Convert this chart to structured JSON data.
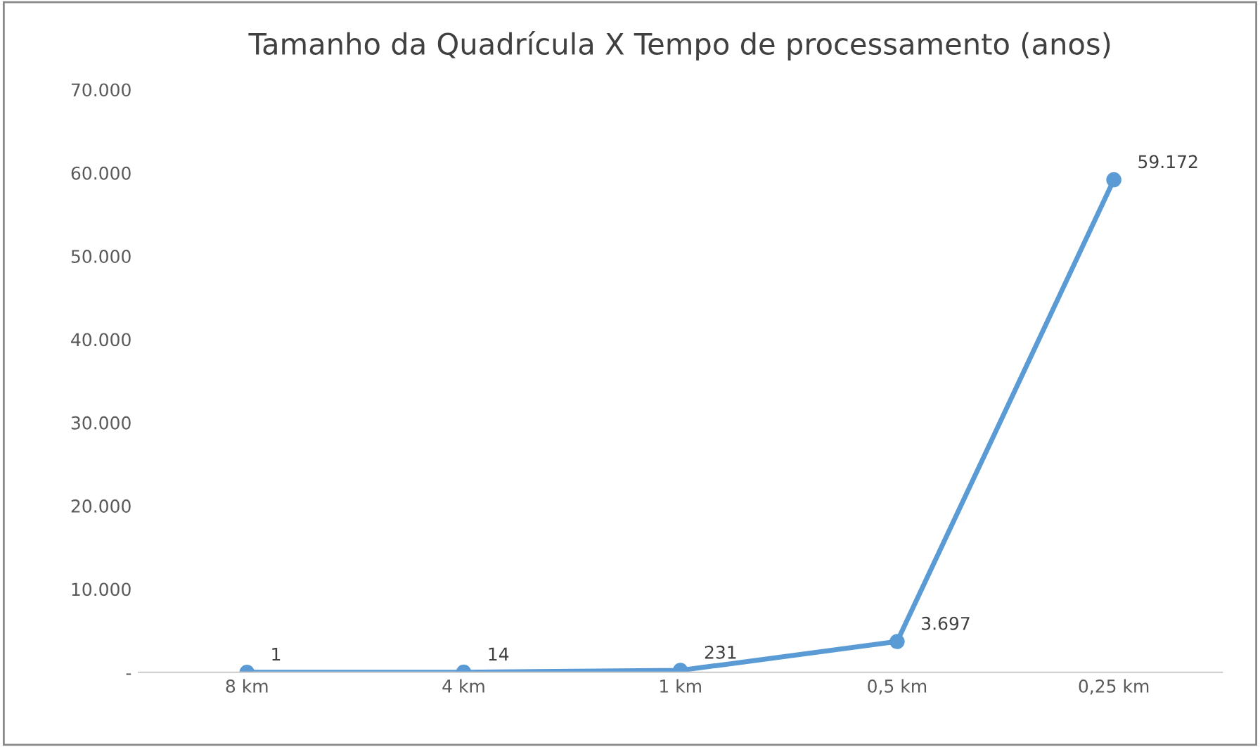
{
  "chart_data": {
    "type": "line",
    "title": "Tamanho da Quadrícula X Tempo de processamento (anos)",
    "categories": [
      "8 km",
      "4 km",
      "1 km",
      "0,5 km",
      "0,25 km"
    ],
    "series": [
      {
        "color": "#5b9bd5",
        "values": [
          1,
          14,
          231,
          3697,
          59172
        ],
        "value_labels": [
          "1",
          "14",
          "231",
          "3.697",
          "59.172"
        ]
      }
    ],
    "ylim": [
      0,
      70000
    ],
    "yticks": [
      {
        "value": 0,
        "label": "-"
      },
      {
        "value": 10000,
        "label": "10.000"
      },
      {
        "value": 20000,
        "label": "20.000"
      },
      {
        "value": 30000,
        "label": "30.000"
      },
      {
        "value": 40000,
        "label": "40.000"
      },
      {
        "value": 50000,
        "label": "50.000"
      },
      {
        "value": 60000,
        "label": "60.000"
      },
      {
        "value": 70000,
        "label": "70.000"
      }
    ],
    "marker": "circle",
    "line_style": "solid"
  }
}
